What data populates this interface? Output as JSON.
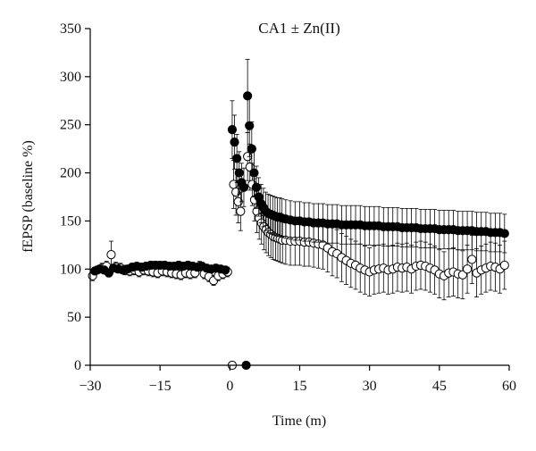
{
  "chart_data": {
    "type": "scatter",
    "title": "CA1 ± Zn(II)",
    "xlabel": "Time (m)",
    "ylabel": "fEPSP (baseline %)",
    "xlim": [
      -30,
      60
    ],
    "ylim": [
      0,
      350
    ],
    "xticks": [
      "−30",
      "−15",
      "0",
      "15",
      "30",
      "45",
      "60"
    ],
    "xtick_values": [
      -30,
      -15,
      0,
      15,
      30,
      45,
      60
    ],
    "yticks": [
      "0",
      "50",
      "100",
      "150",
      "200",
      "250",
      "300",
      "350"
    ],
    "ytick_values": [
      0,
      50,
      100,
      150,
      200,
      250,
      300,
      350
    ],
    "grid": false,
    "legend": "none",
    "series": [
      {
        "marker": "filled-circle",
        "color": "#000000",
        "points": [
          [
            -29,
            98,
            4
          ],
          [
            -28,
            100,
            4
          ],
          [
            -27,
            99,
            4
          ],
          [
            -26,
            96,
            4
          ],
          [
            -25,
            101,
            4
          ],
          [
            -24,
            100,
            4
          ],
          [
            -23,
            99,
            4
          ],
          [
            -22,
            100,
            4
          ],
          [
            -21,
            102,
            4
          ],
          [
            -20,
            103,
            4
          ],
          [
            -19,
            102,
            4
          ],
          [
            -18,
            103,
            4
          ],
          [
            -17,
            104,
            4
          ],
          [
            -16,
            104,
            4
          ],
          [
            -15,
            104,
            4
          ],
          [
            -14,
            104,
            4
          ],
          [
            -13,
            103,
            4
          ],
          [
            -12,
            103,
            4
          ],
          [
            -11,
            104,
            4
          ],
          [
            -10,
            103,
            4
          ],
          [
            -9,
            104,
            4
          ],
          [
            -8,
            103,
            4
          ],
          [
            -7,
            102,
            4
          ],
          [
            -6,
            103,
            4
          ],
          [
            -5,
            101,
            4
          ],
          [
            -4,
            100,
            4
          ],
          [
            -3,
            101,
            4
          ],
          [
            -2,
            100,
            4
          ],
          [
            -1,
            99,
            4
          ],
          [
            3.5,
            0,
            0
          ],
          [
            0.5,
            245,
            30
          ],
          [
            1,
            232,
            28
          ],
          [
            1.5,
            215,
            25
          ],
          [
            2,
            200,
            22
          ],
          [
            2.5,
            190,
            20
          ],
          [
            3,
            185,
            20
          ],
          [
            3.8,
            280,
            38
          ],
          [
            4.2,
            249,
            32
          ],
          [
            4.7,
            225,
            28
          ],
          [
            5.2,
            200,
            25
          ],
          [
            5.7,
            185,
            22
          ],
          [
            6.2,
            175,
            20
          ],
          [
            6.7,
            168,
            20
          ],
          [
            7.2,
            164,
            20
          ],
          [
            7.7,
            160,
            20
          ],
          [
            8.2,
            158,
            20
          ],
          [
            8.7,
            157,
            20
          ],
          [
            9.2,
            156,
            20
          ],
          [
            9.7,
            155,
            20
          ],
          [
            10.2,
            154,
            20
          ],
          [
            10.7,
            154,
            20
          ],
          [
            11.2,
            153,
            20
          ],
          [
            12,
            152,
            20
          ],
          [
            13,
            151,
            20
          ],
          [
            14,
            150,
            20
          ],
          [
            15,
            150,
            20
          ],
          [
            16,
            149,
            20
          ],
          [
            17,
            149,
            20
          ],
          [
            18,
            148,
            20
          ],
          [
            19,
            148,
            20
          ],
          [
            20,
            148,
            20
          ],
          [
            21,
            147,
            20
          ],
          [
            22,
            147,
            20
          ],
          [
            23,
            147,
            20
          ],
          [
            24,
            146,
            20
          ],
          [
            25,
            146,
            20
          ],
          [
            26,
            146,
            20
          ],
          [
            27,
            146,
            20
          ],
          [
            28,
            146,
            20
          ],
          [
            29,
            145,
            20
          ],
          [
            30,
            145,
            20
          ],
          [
            31,
            145,
            20
          ],
          [
            32,
            145,
            20
          ],
          [
            33,
            144,
            20
          ],
          [
            34,
            144,
            20
          ],
          [
            35,
            144,
            20
          ],
          [
            36,
            144,
            20
          ],
          [
            37,
            143,
            20
          ],
          [
            38,
            143,
            20
          ],
          [
            39,
            143,
            20
          ],
          [
            40,
            143,
            20
          ],
          [
            41,
            142,
            20
          ],
          [
            42,
            142,
            20
          ],
          [
            43,
            142,
            20
          ],
          [
            44,
            142,
            20
          ],
          [
            45,
            141,
            20
          ],
          [
            46,
            141,
            20
          ],
          [
            47,
            141,
            20
          ],
          [
            48,
            141,
            20
          ],
          [
            49,
            140,
            20
          ],
          [
            50,
            140,
            20
          ],
          [
            51,
            140,
            20
          ],
          [
            52,
            140,
            20
          ],
          [
            53,
            139,
            20
          ],
          [
            54,
            139,
            20
          ],
          [
            55,
            139,
            20
          ],
          [
            56,
            138,
            20
          ],
          [
            57,
            138,
            20
          ],
          [
            58,
            138,
            20
          ],
          [
            59,
            137,
            20
          ]
        ]
      },
      {
        "marker": "open-circle",
        "color": "#000000",
        "points": [
          [
            -29.5,
            93,
            5
          ],
          [
            -28.5,
            99,
            4
          ],
          [
            -27.5,
            101,
            5
          ],
          [
            -26.5,
            103,
            5
          ],
          [
            -25.5,
            115,
            14
          ],
          [
            -24.5,
            102,
            5
          ],
          [
            -23.5,
            101,
            5
          ],
          [
            -22.5,
            99,
            5
          ],
          [
            -21.5,
            98,
            5
          ],
          [
            -20.5,
            99,
            5
          ],
          [
            -19.5,
            97,
            5
          ],
          [
            -18.5,
            99,
            5
          ],
          [
            -17.5,
            98,
            5
          ],
          [
            -16.5,
            97,
            5
          ],
          [
            -15.5,
            96,
            5
          ],
          [
            -14.5,
            98,
            5
          ],
          [
            -13.5,
            97,
            5
          ],
          [
            -12.5,
            96,
            5
          ],
          [
            -11.5,
            95,
            5
          ],
          [
            -10.5,
            94,
            5
          ],
          [
            -9.5,
            96,
            5
          ],
          [
            -8.5,
            95,
            5
          ],
          [
            -7.5,
            96,
            5
          ],
          [
            -6.5,
            103,
            5
          ],
          [
            -5.5,
            95,
            5
          ],
          [
            -4.5,
            92,
            5
          ],
          [
            -3.5,
            88,
            5
          ],
          [
            -2.5,
            93,
            5
          ],
          [
            -1.5,
            95,
            5
          ],
          [
            -0.5,
            97,
            5
          ],
          [
            0.5,
            0,
            0
          ],
          [
            0.8,
            188,
            25
          ],
          [
            1.3,
            180,
            24
          ],
          [
            1.8,
            170,
            22
          ],
          [
            2.3,
            160,
            20
          ],
          [
            3.8,
            217,
            25
          ],
          [
            4.3,
            206,
            24
          ],
          [
            4.8,
            188,
            22
          ],
          [
            5.3,
            172,
            22
          ],
          [
            5.8,
            160,
            22
          ],
          [
            6.3,
            153,
            22
          ],
          [
            6.8,
            148,
            22
          ],
          [
            7.3,
            144,
            24
          ],
          [
            7.8,
            141,
            24
          ],
          [
            8.3,
            138,
            24
          ],
          [
            8.8,
            136,
            24
          ],
          [
            9.3,
            134,
            24
          ],
          [
            9.8,
            133,
            24
          ],
          [
            10.3,
            132,
            24
          ],
          [
            10.8,
            131,
            24
          ],
          [
            11.3,
            130,
            24
          ],
          [
            12,
            130,
            25
          ],
          [
            13,
            129,
            25
          ],
          [
            14,
            129,
            25
          ],
          [
            15,
            129,
            25
          ],
          [
            16,
            128,
            25
          ],
          [
            17,
            128,
            25
          ],
          [
            18,
            127,
            25
          ],
          [
            19,
            126,
            25
          ],
          [
            20,
            125,
            25
          ],
          [
            21,
            122,
            25
          ],
          [
            22,
            118,
            25
          ],
          [
            23,
            116,
            25
          ],
          [
            24,
            112,
            25
          ],
          [
            25,
            109,
            25
          ],
          [
            26,
            106,
            25
          ],
          [
            27,
            104,
            25
          ],
          [
            28,
            101,
            25
          ],
          [
            29,
            99,
            25
          ],
          [
            30,
            97,
            25
          ],
          [
            31,
            99,
            25
          ],
          [
            32,
            100,
            25
          ],
          [
            33,
            101,
            25
          ],
          [
            34,
            99,
            25
          ],
          [
            35,
            100,
            25
          ],
          [
            36,
            102,
            25
          ],
          [
            37,
            101,
            25
          ],
          [
            38,
            102,
            25
          ],
          [
            39,
            100,
            25
          ],
          [
            40,
            103,
            25
          ],
          [
            41,
            104,
            25
          ],
          [
            42,
            103,
            25
          ],
          [
            43,
            101,
            25
          ],
          [
            44,
            99,
            25
          ],
          [
            45,
            95,
            25
          ],
          [
            46,
            93,
            25
          ],
          [
            47,
            96,
            25
          ],
          [
            48,
            97,
            25
          ],
          [
            49,
            95,
            25
          ],
          [
            50,
            94,
            25
          ],
          [
            51,
            100,
            25
          ],
          [
            52,
            110,
            25
          ],
          [
            53,
            96,
            25
          ],
          [
            54,
            99,
            25
          ],
          [
            55,
            101,
            25
          ],
          [
            56,
            103,
            25
          ],
          [
            57,
            102,
            25
          ],
          [
            58,
            100,
            25
          ],
          [
            59,
            104,
            25
          ]
        ]
      }
    ]
  }
}
